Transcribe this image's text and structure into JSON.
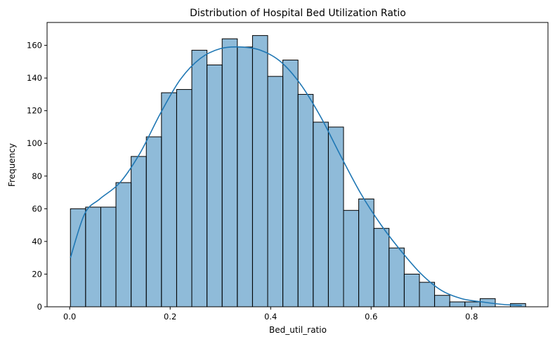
{
  "chart_data": {
    "type": "bar",
    "title": "Distribution of Hospital Bed Utilization Ratio",
    "xlabel": "Bed_util_ratio",
    "ylabel": "Frequency",
    "xlim": [
      -0.045,
      0.952
    ],
    "ylim": [
      0,
      174
    ],
    "xticks": [
      0.0,
      0.2,
      0.4,
      0.6,
      0.8
    ],
    "xtick_labels": [
      "0.0",
      "0.2",
      "0.4",
      "0.6",
      "0.8"
    ],
    "yticks": [
      0,
      20,
      40,
      60,
      80,
      100,
      120,
      140,
      160
    ],
    "ytick_labels": [
      "0",
      "20",
      "40",
      "60",
      "80",
      "100",
      "120",
      "140",
      "160"
    ],
    "bin_start": 0.0015,
    "bin_width": 0.0302,
    "values": [
      60,
      61,
      61,
      76,
      92,
      104,
      131,
      133,
      157,
      148,
      164,
      159,
      166,
      141,
      151,
      130,
      113,
      110,
      59,
      66,
      48,
      36,
      20,
      15,
      7,
      3,
      3,
      5,
      0,
      2
    ],
    "kde": {
      "x": [
        0.0015,
        0.03,
        0.06,
        0.1,
        0.14,
        0.18,
        0.22,
        0.26,
        0.3,
        0.34,
        0.38,
        0.42,
        0.46,
        0.5,
        0.54,
        0.58,
        0.62,
        0.66,
        0.7,
        0.74,
        0.78,
        0.82,
        0.86,
        0.9
      ],
      "y": [
        30,
        57,
        66,
        76,
        94,
        118,
        139,
        152,
        158,
        159,
        157,
        150,
        136,
        116,
        92,
        69,
        50,
        34,
        20,
        10,
        5,
        3,
        1.5,
        0.8
      ]
    },
    "grid": false,
    "legend": false
  }
}
